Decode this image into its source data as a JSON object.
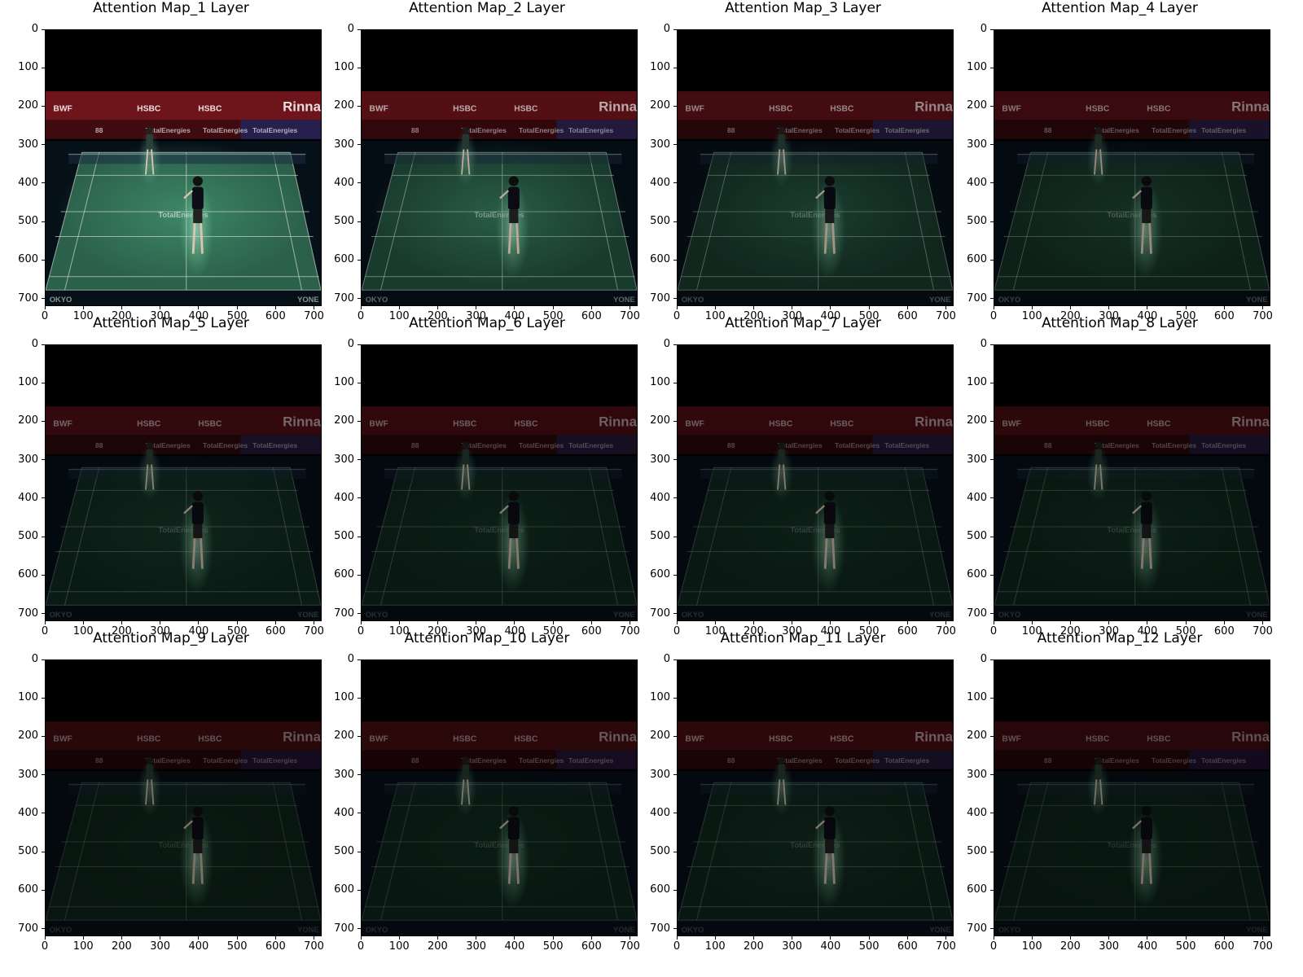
{
  "chart_data": [
    {
      "type": "heatmap",
      "title": "Attention Map_1 Layer",
      "attention_intensity": 1.0,
      "xlim": [
        0,
        720
      ],
      "ylim": [
        720,
        0
      ],
      "xticks": [
        "0",
        "100",
        "200",
        "300",
        "400",
        "500",
        "600",
        "700"
      ],
      "yticks": [
        "0",
        "100",
        "200",
        "300",
        "400",
        "500",
        "600",
        "700"
      ]
    },
    {
      "type": "heatmap",
      "title": "Attention Map_2 Layer",
      "attention_intensity": 0.75,
      "xlim": [
        0,
        720
      ],
      "ylim": [
        720,
        0
      ],
      "xticks": [
        "0",
        "100",
        "200",
        "300",
        "400",
        "500",
        "600",
        "700"
      ],
      "yticks": [
        "0",
        "100",
        "200",
        "300",
        "400",
        "500",
        "600",
        "700"
      ]
    },
    {
      "type": "heatmap",
      "title": "Attention Map_3 Layer",
      "attention_intensity": 0.55,
      "xlim": [
        0,
        720
      ],
      "ylim": [
        720,
        0
      ],
      "xticks": [
        "0",
        "100",
        "200",
        "300",
        "400",
        "500",
        "600",
        "700"
      ],
      "yticks": [
        "0",
        "100",
        "200",
        "300",
        "400",
        "500",
        "600",
        "700"
      ]
    },
    {
      "type": "heatmap",
      "title": "Attention Map_4 Layer",
      "attention_intensity": 0.45,
      "xlim": [
        0,
        720
      ],
      "ylim": [
        720,
        0
      ],
      "xticks": [
        "0",
        "100",
        "200",
        "300",
        "400",
        "500",
        "600",
        "700"
      ],
      "yticks": [
        "0",
        "100",
        "200",
        "300",
        "400",
        "500",
        "600",
        "700"
      ]
    },
    {
      "type": "heatmap",
      "title": "Attention Map_5 Layer",
      "attention_intensity": 0.35,
      "xlim": [
        0,
        720
      ],
      "ylim": [
        720,
        0
      ],
      "xticks": [
        "0",
        "100",
        "200",
        "300",
        "400",
        "500",
        "600",
        "700"
      ],
      "yticks": [
        "0",
        "100",
        "200",
        "300",
        "400",
        "500",
        "600",
        "700"
      ]
    },
    {
      "type": "heatmap",
      "title": "Attention Map_6 Layer",
      "attention_intensity": 0.3,
      "xlim": [
        0,
        720
      ],
      "ylim": [
        720,
        0
      ],
      "xticks": [
        "0",
        "100",
        "200",
        "300",
        "400",
        "500",
        "600",
        "700"
      ],
      "yticks": [
        "0",
        "100",
        "200",
        "300",
        "400",
        "500",
        "600",
        "700"
      ]
    },
    {
      "type": "heatmap",
      "title": "Attention Map_7 Layer",
      "attention_intensity": 0.3,
      "xlim": [
        0,
        720
      ],
      "ylim": [
        720,
        0
      ],
      "xticks": [
        "0",
        "100",
        "200",
        "300",
        "400",
        "500",
        "600",
        "700"
      ],
      "yticks": [
        "0",
        "100",
        "200",
        "300",
        "400",
        "500",
        "600",
        "700"
      ]
    },
    {
      "type": "heatmap",
      "title": "Attention Map_8 Layer",
      "attention_intensity": 0.28,
      "xlim": [
        0,
        720
      ],
      "ylim": [
        720,
        0
      ],
      "xticks": [
        "0",
        "100",
        "200",
        "300",
        "400",
        "500",
        "600",
        "700"
      ],
      "yticks": [
        "0",
        "100",
        "200",
        "300",
        "400",
        "500",
        "600",
        "700"
      ]
    },
    {
      "type": "heatmap",
      "title": "Attention Map_9 Layer",
      "attention_intensity": 0.22,
      "xlim": [
        0,
        720
      ],
      "ylim": [
        720,
        0
      ],
      "xticks": [
        "0",
        "100",
        "200",
        "300",
        "400",
        "500",
        "600",
        "700"
      ],
      "yticks": [
        "0",
        "100",
        "200",
        "300",
        "400",
        "500",
        "600",
        "700"
      ]
    },
    {
      "type": "heatmap",
      "title": "Attention Map_10 Layer",
      "attention_intensity": 0.25,
      "xlim": [
        0,
        720
      ],
      "ylim": [
        720,
        0
      ],
      "xticks": [
        "0",
        "100",
        "200",
        "300",
        "400",
        "500",
        "600",
        "700"
      ],
      "yticks": [
        "0",
        "100",
        "200",
        "300",
        "400",
        "500",
        "600",
        "700"
      ]
    },
    {
      "type": "heatmap",
      "title": "Attention Map_11 Layer",
      "attention_intensity": 0.28,
      "xlim": [
        0,
        720
      ],
      "ylim": [
        720,
        0
      ],
      "xticks": [
        "0",
        "100",
        "200",
        "300",
        "400",
        "500",
        "600",
        "700"
      ],
      "yticks": [
        "0",
        "100",
        "200",
        "300",
        "400",
        "500",
        "600",
        "700"
      ]
    },
    {
      "type": "heatmap",
      "title": "Attention Map_12 Layer",
      "attention_intensity": 0.2,
      "xlim": [
        0,
        720
      ],
      "ylim": [
        720,
        0
      ],
      "xticks": [
        "0",
        "100",
        "200",
        "300",
        "400",
        "500",
        "600",
        "700"
      ],
      "yticks": [
        "0",
        "100",
        "200",
        "300",
        "400",
        "500",
        "600",
        "700"
      ]
    }
  ],
  "scene": {
    "banner_texts": [
      "BWF",
      "HSBC",
      "HSBC",
      "Rinna"
    ],
    "sponsor_texts": [
      "88",
      "TotalEnergies",
      "TotalEnergies",
      "TotalEnergies"
    ],
    "court_text_left": "OKYO",
    "court_text_right": "YONE",
    "center_logo": "TotalEnergies",
    "colors": {
      "attention": "#3f8a6a",
      "banner": "#8a1a22",
      "board": "#1e2a6a",
      "court": "#0a1a14",
      "background": "#000000"
    }
  }
}
